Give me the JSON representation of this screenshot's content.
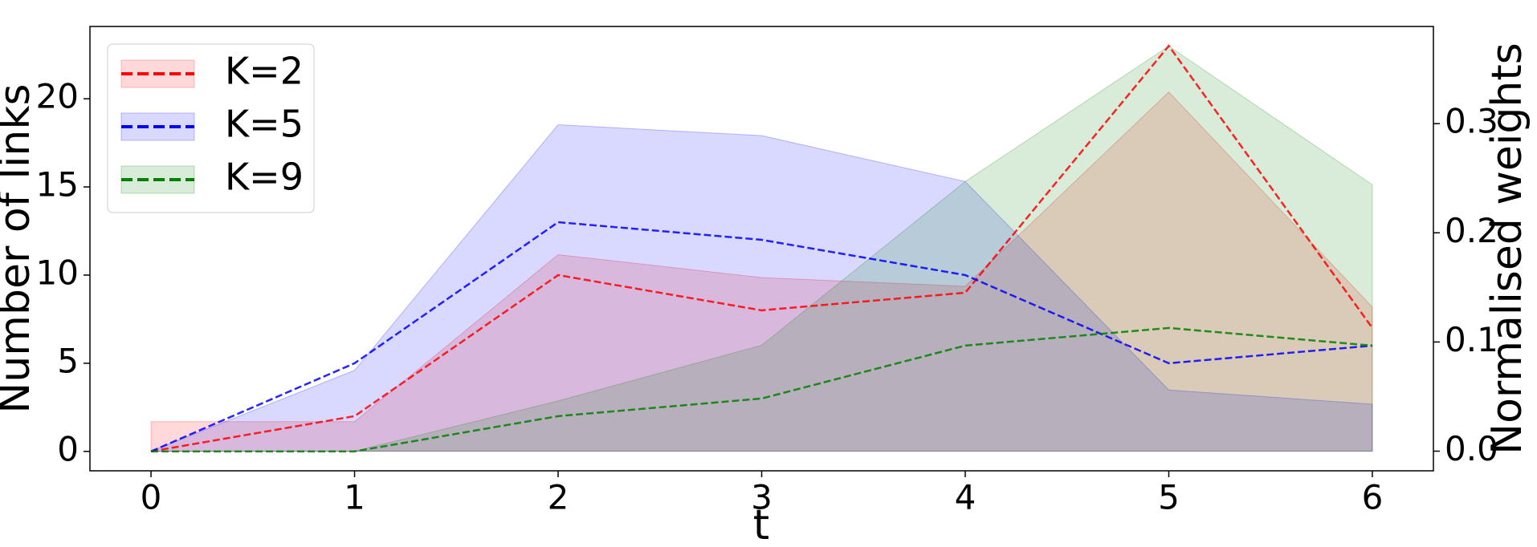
{
  "chart_data": {
    "type": "line",
    "xlabel": "t",
    "ylabel": "Number of links",
    "y2label": "Normalised weights",
    "x": [
      0,
      1,
      2,
      3,
      4,
      5,
      6
    ],
    "series": [
      {
        "name": "K=2",
        "color": "red",
        "values": [
          0,
          2,
          10,
          8,
          9,
          23,
          7
        ],
        "weights": [
          0.027,
          0.027,
          0.18,
          0.159,
          0.151,
          0.329,
          0.132
        ]
      },
      {
        "name": "K=5",
        "color": "blue",
        "values": [
          0,
          5,
          13,
          12,
          10,
          5,
          6
        ],
        "weights": [
          0,
          0.074,
          0.299,
          0.289,
          0.247,
          0.056,
          0.043
        ]
      },
      {
        "name": "K=9",
        "color": "green",
        "values": [
          0,
          0,
          2,
          3,
          6,
          7,
          6
        ],
        "weights": [
          0,
          0,
          0.046,
          0.097,
          0.247,
          0.371,
          0.244
        ]
      }
    ],
    "xlim": [
      -0.3,
      6.3
    ],
    "xticks": [
      0,
      1,
      2,
      3,
      4,
      5,
      6
    ],
    "ylim": [
      -1.1,
      24.1
    ],
    "yticks": [
      0,
      5,
      10,
      15,
      20
    ],
    "y2lim": [
      -0.018,
      0.389
    ],
    "y2ticks": [
      {
        "value": 0,
        "label": "0.0"
      },
      0.1,
      0.2,
      0.3
    ],
    "legend": "upper left"
  }
}
